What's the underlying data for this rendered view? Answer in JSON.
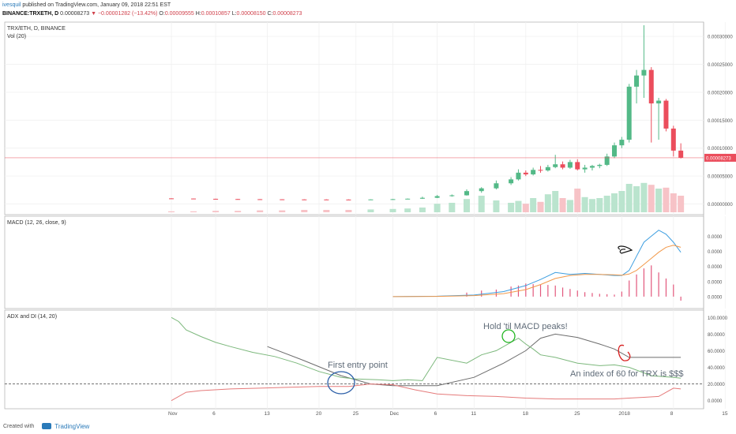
{
  "header": {
    "author": "ivesquil",
    "published": "published on TradingView.com, January 09, 2018 22:51 EST",
    "symbol": "BINANCE:TRXETH, D",
    "last": "0.00008273",
    "change": "−0.00001282 (−13.42%)",
    "o_label": "O:",
    "o_value": "0.00009555",
    "h_label": "H:",
    "h_value": "0.00010857",
    "l_label": "L:",
    "l_value": "0.00008150",
    "c_label": "C:",
    "c_value": "0.00008273"
  },
  "footer": {
    "created_with": "Created with",
    "brand": "TradingView"
  },
  "colors": {
    "up": "#53b987",
    "down": "#eb4d5c",
    "macd": "#3d9ee0",
    "signal": "#f2994a",
    "adx": "#6c6c6c",
    "di_plus": "#7cb87c",
    "di_minus": "#e57a7a",
    "annot_blue": "#2c5fa8",
    "annot_green": "#21b521",
    "annot_red": "#d81e1e"
  },
  "chart_data": [
    {
      "type": "candlestick",
      "pane_title": "TRX/ETH, D, BINANCE",
      "vol_title": "Vol (20)",
      "last_price_label": "0.00008273",
      "yticks": [
        0,
        5e-05,
        0.0001,
        0.00015,
        0.0002,
        0.00025,
        0.0003
      ],
      "ytick_labels": [
        "0.00000000",
        "0.00005000",
        "0.00010000",
        "0.00015000",
        "0.00020000",
        "0.00025000",
        "0.00030000"
      ],
      "ylim": [
        -5e-06,
        0.00032
      ],
      "x_labels": [
        "Nov",
        "6",
        "13",
        "20",
        "25",
        "Dec",
        "6",
        "11",
        "18",
        "25",
        "2018",
        "8",
        "15"
      ],
      "x_label_days": [
        0,
        6,
        13,
        20,
        25,
        30,
        36,
        41,
        48,
        55,
        61,
        68,
        75
      ],
      "candles": [
        {
          "d": 0,
          "o": 1e-05,
          "h": 1.02e-05,
          "l": 9.5e-06,
          "c": 9.7e-06
        },
        {
          "d": 3,
          "o": 9.7e-06,
          "h": 9.8e-06,
          "l": 9e-06,
          "c": 9.2e-06
        },
        {
          "d": 6,
          "o": 9.2e-06,
          "h": 9.4e-06,
          "l": 8.6e-06,
          "c": 8.8e-06
        },
        {
          "d": 9,
          "o": 8.8e-06,
          "h": 9e-06,
          "l": 8.2e-06,
          "c": 8.5e-06
        },
        {
          "d": 12,
          "o": 8.5e-06,
          "h": 8.7e-06,
          "l": 8e-06,
          "c": 8.3e-06
        },
        {
          "d": 15,
          "o": 8.3e-06,
          "h": 8.5e-06,
          "l": 7.8e-06,
          "c": 8.1e-06
        },
        {
          "d": 18,
          "o": 8.1e-06,
          "h": 8.4e-06,
          "l": 7.7e-06,
          "c": 8e-06
        },
        {
          "d": 21,
          "o": 8e-06,
          "h": 8.3e-06,
          "l": 7.6e-06,
          "c": 7.9e-06
        },
        {
          "d": 24,
          "o": 7.9e-06,
          "h": 8.2e-06,
          "l": 7.5e-06,
          "c": 7.8e-06
        },
        {
          "d": 27,
          "o": 7.8e-06,
          "h": 8.3e-06,
          "l": 7.6e-06,
          "c": 8.1e-06
        },
        {
          "d": 30,
          "o": 8.1e-06,
          "h": 9e-06,
          "l": 7.8e-06,
          "c": 8.6e-06
        },
        {
          "d": 32,
          "o": 8.6e-06,
          "h": 9.8e-06,
          "l": 8.4e-06,
          "c": 9.4e-06
        },
        {
          "d": 34,
          "o": 9.4e-06,
          "h": 1.3e-05,
          "l": 9e-06,
          "c": 1.1e-05
        },
        {
          "d": 36,
          "o": 1.1e-05,
          "h": 1.6e-05,
          "l": 1.05e-05,
          "c": 1.4e-05
        },
        {
          "d": 38,
          "o": 1.4e-05,
          "h": 1.7e-05,
          "l": 1.3e-05,
          "c": 1.55e-05
        },
        {
          "d": 40,
          "o": 1.55e-05,
          "h": 2.6e-05,
          "l": 1.5e-05,
          "c": 2.3e-05
        },
        {
          "d": 42,
          "o": 2.3e-05,
          "h": 3e-05,
          "l": 2e-05,
          "c": 2.8e-05
        },
        {
          "d": 44,
          "o": 2.8e-05,
          "h": 4.2e-05,
          "l": 2.6e-05,
          "c": 3.7e-05
        },
        {
          "d": 46,
          "o": 3.7e-05,
          "h": 4.8e-05,
          "l": 3.4e-05,
          "c": 4.4e-05
        },
        {
          "d": 47,
          "o": 4.4e-05,
          "h": 6.2e-05,
          "l": 4.2e-05,
          "c": 5.6e-05
        },
        {
          "d": 48,
          "o": 5.6e-05,
          "h": 6e-05,
          "l": 5e-05,
          "c": 5.3e-05
        },
        {
          "d": 49,
          "o": 5.3e-05,
          "h": 6.5e-05,
          "l": 5.1e-05,
          "c": 6.1e-05
        },
        {
          "d": 50,
          "o": 6.1e-05,
          "h": 6.8e-05,
          "l": 5.6e-05,
          "c": 6e-05
        },
        {
          "d": 51,
          "o": 6e-05,
          "h": 7e-05,
          "l": 5.8e-05,
          "c": 6.6e-05
        },
        {
          "d": 52,
          "o": 6.6e-05,
          "h": 8.8e-05,
          "l": 6.4e-05,
          "c": 7.1e-05
        },
        {
          "d": 53,
          "o": 7.1e-05,
          "h": 7.6e-05,
          "l": 6.2e-05,
          "c": 6.5e-05
        },
        {
          "d": 54,
          "o": 6.5e-05,
          "h": 7.9e-05,
          "l": 6.3e-05,
          "c": 7.5e-05
        },
        {
          "d": 55,
          "o": 7.5e-05,
          "h": 8e-05,
          "l": 6e-05,
          "c": 6.2e-05
        },
        {
          "d": 56,
          "o": 6.2e-05,
          "h": 7e-05,
          "l": 5.6e-05,
          "c": 6.5e-05
        },
        {
          "d": 57,
          "o": 6.5e-05,
          "h": 7e-05,
          "l": 6e-05,
          "c": 6.8e-05
        },
        {
          "d": 58,
          "o": 6.8e-05,
          "h": 7.2e-05,
          "l": 6.4e-05,
          "c": 7e-05
        },
        {
          "d": 59,
          "o": 7e-05,
          "h": 9e-05,
          "l": 6.8e-05,
          "c": 8.5e-05
        },
        {
          "d": 60,
          "o": 8.5e-05,
          "h": 0.00011,
          "l": 8.2e-05,
          "c": 0.000105
        },
        {
          "d": 61,
          "o": 0.000105,
          "h": 0.00012,
          "l": 0.0001,
          "c": 0.000115
        },
        {
          "d": 62,
          "o": 0.000115,
          "h": 0.000215,
          "l": 0.00011,
          "c": 0.00021
        },
        {
          "d": 63,
          "o": 0.00021,
          "h": 0.00024,
          "l": 0.00018,
          "c": 0.00023
        },
        {
          "d": 64,
          "o": 0.00023,
          "h": 0.00032,
          "l": 0.00019,
          "c": 0.00024
        },
        {
          "d": 65,
          "o": 0.00024,
          "h": 0.000245,
          "l": 0.00011,
          "c": 0.00018
        },
        {
          "d": 66,
          "o": 0.00018,
          "h": 0.00019,
          "l": 0.000115,
          "c": 0.000185
        },
        {
          "d": 67,
          "o": 0.000185,
          "h": 0.000188,
          "l": 0.00013,
          "c": 0.000135
        },
        {
          "d": 68,
          "o": 0.000135,
          "h": 0.00014,
          "l": 8.5e-05,
          "c": 9.55e-05
        },
        {
          "d": 69,
          "o": 9.55e-05,
          "h": 0.0001086,
          "l": 8.15e-05,
          "c": 8.27e-05
        }
      ],
      "volume_rel": [
        0.02,
        0.02,
        0.03,
        0.03,
        0.04,
        0.04,
        0.05,
        0.05,
        0.05,
        0.06,
        0.07,
        0.08,
        0.1,
        0.18,
        0.2,
        0.28,
        0.35,
        0.25,
        0.2,
        0.24,
        0.18,
        0.3,
        0.22,
        0.38,
        0.45,
        0.3,
        0.26,
        0.5,
        0.32,
        0.28,
        0.3,
        0.35,
        0.4,
        0.45,
        0.6,
        0.55,
        0.62,
        0.58,
        0.5,
        0.52,
        0.4,
        0.35
      ]
    },
    {
      "type": "line",
      "pane_title": "MACD (12, 26, close, 9)",
      "ytick_labels": [
        "0.0000",
        "0.0000",
        "0.0000",
        "0.0000",
        "0.0000"
      ],
      "series": [
        {
          "name": "MACD",
          "x": [
            30,
            36,
            41,
            45,
            48,
            50,
            52,
            54,
            56,
            58,
            60,
            61,
            62,
            63,
            64,
            65,
            66,
            67,
            68,
            69
          ],
          "y": [
            0,
            0.2,
            0.8,
            2.5,
            5.5,
            8.5,
            12,
            11,
            11.5,
            11,
            10.5,
            10.5,
            13,
            20,
            27,
            30,
            33,
            31,
            27,
            22
          ]
        },
        {
          "name": "Signal",
          "x": [
            30,
            36,
            41,
            45,
            48,
            50,
            52,
            54,
            56,
            58,
            60,
            61,
            62,
            63,
            64,
            65,
            66,
            67,
            68,
            69
          ],
          "y": [
            0,
            0.1,
            0.5,
            1.5,
            3.5,
            6,
            9,
            10.5,
            11,
            11,
            10.8,
            10.6,
            11.2,
            13,
            16,
            19,
            22,
            24.5,
            25.5,
            24.5
          ]
        },
        {
          "name": "Histogram",
          "x": [
            40,
            42,
            44,
            46,
            47,
            48,
            49,
            50,
            51,
            52,
            53,
            54,
            55,
            56,
            57,
            58,
            59,
            60,
            61,
            62,
            63,
            64,
            65,
            66,
            67,
            68,
            69
          ],
          "y": [
            2,
            3,
            3.5,
            5,
            5.5,
            6.5,
            6.2,
            6,
            5.8,
            5.5,
            4.5,
            3.8,
            3,
            2.2,
            1.8,
            1.4,
            1.2,
            1,
            2.5,
            8,
            11,
            14,
            15.5,
            12,
            9,
            6,
            -2
          ]
        }
      ]
    },
    {
      "type": "line",
      "pane_title": "ADX and DI (14, 20)",
      "ytick_labels": [
        "0.0000",
        "20.0000",
        "40.0000",
        "60.0000",
        "80.0000",
        "100.0000"
      ],
      "yticks": [
        0,
        20,
        40,
        60,
        80,
        100
      ],
      "ylim": [
        -6,
        105
      ],
      "reference_level": 20,
      "series": [
        {
          "name": "ADX",
          "x": [
            13,
            18,
            23,
            27,
            30,
            36,
            41,
            45,
            48,
            50,
            52,
            55,
            58,
            60,
            62,
            65,
            67,
            69
          ],
          "y": [
            65,
            48,
            30,
            20,
            18,
            18,
            28,
            45,
            60,
            75,
            80,
            76,
            68,
            62,
            52,
            52,
            52,
            52
          ]
        },
        {
          "name": "+DI",
          "x": [
            0,
            1,
            2,
            4,
            6,
            8,
            11,
            14,
            17,
            20,
            23,
            25,
            28,
            30,
            32,
            34,
            36,
            40,
            42,
            44,
            47,
            48,
            49,
            50,
            52,
            55,
            58,
            60,
            62,
            65,
            68,
            69
          ],
          "y": [
            100,
            95,
            85,
            77,
            70,
            65,
            58,
            53,
            45,
            35,
            28,
            26,
            25,
            24,
            25,
            24,
            52,
            45,
            55,
            60,
            75,
            68,
            62,
            55,
            52,
            45,
            42,
            43,
            40,
            30,
            28,
            27
          ]
        },
        {
          "name": "−DI",
          "x": [
            0,
            2,
            4,
            8,
            12,
            16,
            20,
            24,
            27,
            30,
            33,
            36,
            40,
            44,
            48,
            52,
            56,
            60,
            62,
            64,
            66,
            68,
            69
          ],
          "y": [
            0,
            10,
            12,
            14,
            15,
            16,
            17,
            17,
            20,
            19,
            13,
            8,
            6,
            5,
            3,
            2,
            2,
            2,
            3,
            4,
            5,
            15,
            14
          ]
        }
      ]
    }
  ],
  "annotations": {
    "first_entry": "First entry point",
    "hold": "Hold 'til MACD peaks!",
    "index": "An index of 60 for TRX is $$$"
  }
}
